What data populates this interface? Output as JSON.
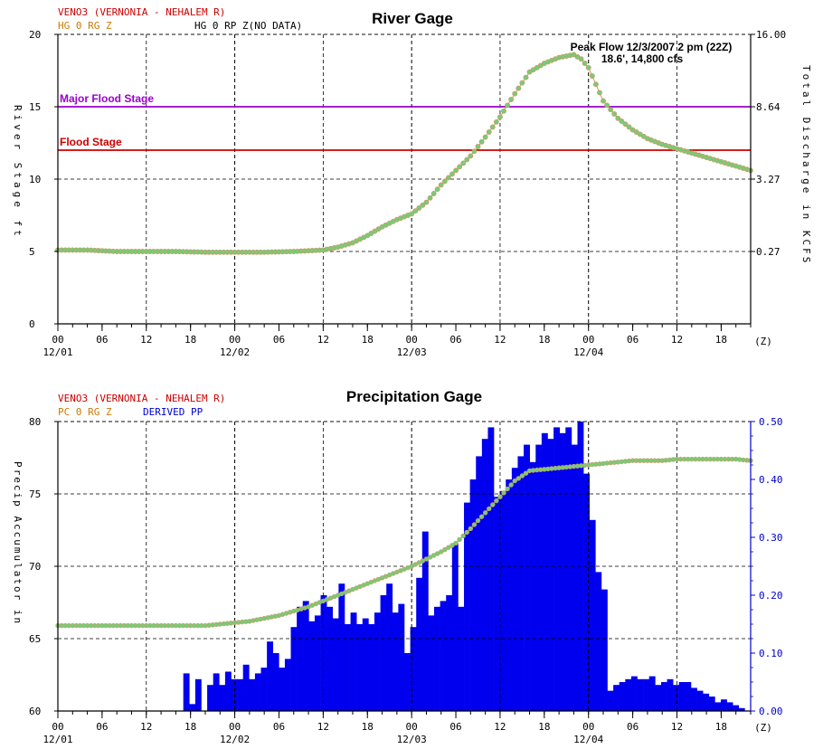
{
  "colors": {
    "background": "#ffffff",
    "axis": "#000000",
    "grid": "#000000",
    "station_red": "#cc0000",
    "series_orange": "#cc7a00",
    "derived_blue": "#0000cc",
    "bar_blue": "#0000ee",
    "marker_fill": "#77cc77",
    "marker_edge": "#cc9966",
    "major_flood": "#9900cc",
    "flood": "#cc0000"
  },
  "chart_data": [
    {
      "type": "line",
      "title": "River Gage",
      "station": "VENO3 (VERNONIA - NEHALEM R)",
      "legend": [
        "HG 0 RG Z",
        "HG 0 RP Z(NO DATA)"
      ],
      "ylabel": "River Stage ft",
      "y2label": "Total Discharge in KCFS",
      "xlabel_unit": "(Z)",
      "ylim": [
        0,
        20
      ],
      "y_ticks": [
        "0",
        "5",
        "10",
        "15",
        "20"
      ],
      "y2_ticks": [
        "16.00",
        "8.64",
        "3.27",
        "0.27"
      ],
      "y2_tick_positions": [
        20,
        15,
        10,
        5
      ],
      "xlim": [
        0,
        94
      ],
      "x_ticks": [
        0,
        6,
        12,
        18,
        24,
        30,
        36,
        42,
        48,
        54,
        60,
        66,
        72,
        78,
        84,
        90
      ],
      "x_tick_labels": [
        "00",
        "06",
        "12",
        "18",
        "00",
        "06",
        "12",
        "18",
        "00",
        "06",
        "12",
        "18",
        "00",
        "06",
        "12",
        "18"
      ],
      "date_ticks": [
        0,
        24,
        48,
        72
      ],
      "date_labels": [
        "12/01",
        "12/02",
        "12/03",
        "12/04"
      ],
      "thresholds": [
        {
          "name": "Major Flood Stage",
          "value": 15
        },
        {
          "name": "Flood Stage",
          "value": 12
        }
      ],
      "annotation": {
        "line1": "Peak Flow 12/3/2007 2 pm (22Z)",
        "line2": "18.6', 14,800 cfs"
      },
      "series": [
        {
          "x": [
            0,
            4,
            8,
            12,
            16,
            20,
            24,
            28,
            32,
            36,
            38,
            40,
            42,
            44,
            46,
            48,
            50,
            52,
            54,
            56,
            58,
            60,
            62,
            64,
            66,
            68,
            70,
            71,
            72,
            74,
            76,
            78,
            80,
            82,
            84,
            86,
            88,
            90,
            92,
            94
          ],
          "y": [
            5.1,
            5.1,
            5.0,
            5.0,
            5.0,
            4.95,
            4.95,
            4.95,
            5.0,
            5.1,
            5.3,
            5.6,
            6.1,
            6.7,
            7.2,
            7.6,
            8.4,
            9.6,
            10.6,
            11.6,
            12.9,
            14.3,
            15.9,
            17.4,
            18.0,
            18.4,
            18.6,
            18.3,
            17.7,
            15.4,
            14.2,
            13.4,
            12.8,
            12.4,
            12.1,
            11.8,
            11.5,
            11.2,
            10.9,
            10.6
          ]
        }
      ]
    },
    {
      "type": "bar",
      "title": "Precipitation Gage",
      "station": "VENO3 (VERNONIA - NEHALEM R)",
      "legend": [
        "PC 0 RG Z",
        "DERIVED PP"
      ],
      "ylabel": "Precip Accumulator in",
      "xlabel_unit": "(Z)",
      "ylim": [
        60,
        80
      ],
      "y_ticks": [
        "60",
        "65",
        "70",
        "75",
        "80"
      ],
      "y2lim": [
        0,
        0.5
      ],
      "y2_ticks": [
        "0.00",
        "0.10",
        "0.20",
        "0.30",
        "0.40",
        "0.50"
      ],
      "xlim": [
        0,
        94
      ],
      "x_ticks": [
        0,
        6,
        12,
        18,
        24,
        30,
        36,
        42,
        48,
        54,
        60,
        66,
        72,
        78,
        84,
        90
      ],
      "x_tick_labels": [
        "00",
        "06",
        "12",
        "18",
        "00",
        "06",
        "12",
        "18",
        "00",
        "06",
        "12",
        "18",
        "00",
        "06",
        "12",
        "18"
      ],
      "date_ticks": [
        0,
        24,
        48,
        72
      ],
      "date_labels": [
        "12/01",
        "12/02",
        "12/03",
        "12/04"
      ],
      "accumulator": {
        "x": [
          0,
          4,
          8,
          12,
          16,
          20,
          22,
          24,
          26,
          28,
          30,
          32,
          34,
          36,
          38,
          40,
          42,
          44,
          46,
          48,
          50,
          52,
          54,
          56,
          58,
          60,
          62,
          64,
          66,
          68,
          70,
          72,
          74,
          76,
          78,
          80,
          82,
          84,
          86,
          88,
          90,
          92,
          94
        ],
        "y": [
          65.9,
          65.9,
          65.9,
          65.9,
          65.9,
          65.9,
          66.0,
          66.1,
          66.2,
          66.4,
          66.6,
          66.9,
          67.2,
          67.6,
          68.0,
          68.4,
          68.8,
          69.2,
          69.6,
          70.0,
          70.5,
          71.0,
          71.6,
          72.6,
          73.7,
          74.8,
          75.9,
          76.6,
          76.7,
          76.8,
          76.9,
          77.0,
          77.1,
          77.2,
          77.3,
          77.3,
          77.3,
          77.4,
          77.4,
          77.4,
          77.4,
          77.4,
          77.3
        ]
      },
      "bars": {
        "start": 0,
        "values": [
          0,
          0,
          0,
          0,
          0,
          0,
          0,
          0,
          0,
          0,
          0,
          0,
          0,
          0,
          0,
          0,
          0,
          0,
          0,
          0,
          0,
          0.065,
          0.012,
          0.055,
          0,
          0.045,
          0.065,
          0.045,
          0.068,
          0.055,
          0.055,
          0.08,
          0.055,
          0.065,
          0.075,
          0.12,
          0.1,
          0.075,
          0.09,
          0.145,
          0.18,
          0.19,
          0.155,
          0.165,
          0.2,
          0.18,
          0.16,
          0.22,
          0.15,
          0.17,
          0.15,
          0.16,
          0.15,
          0.17,
          0.2,
          0.22,
          0.17,
          0.185,
          0.1,
          0.145,
          0.23,
          0.31,
          0.165,
          0.18,
          0.19,
          0.2,
          0.29,
          0.18,
          0.36,
          0.4,
          0.44,
          0.47,
          0.49,
          0.37,
          0.38,
          0.4,
          0.42,
          0.44,
          0.46,
          0.43,
          0.46,
          0.48,
          0.47,
          0.49,
          0.48,
          0.49,
          0.46,
          0.51,
          0.41,
          0.33,
          0.24,
          0.21,
          0.035,
          0.045,
          0.05,
          0.055,
          0.06,
          0.055,
          0.055,
          0.06,
          0.045,
          0.05,
          0.055,
          0.045,
          0.05,
          0.05,
          0.04,
          0.035,
          0.03,
          0.025,
          0.015,
          0.02,
          0.015,
          0.01,
          0.005,
          0.0
        ]
      }
    }
  ]
}
